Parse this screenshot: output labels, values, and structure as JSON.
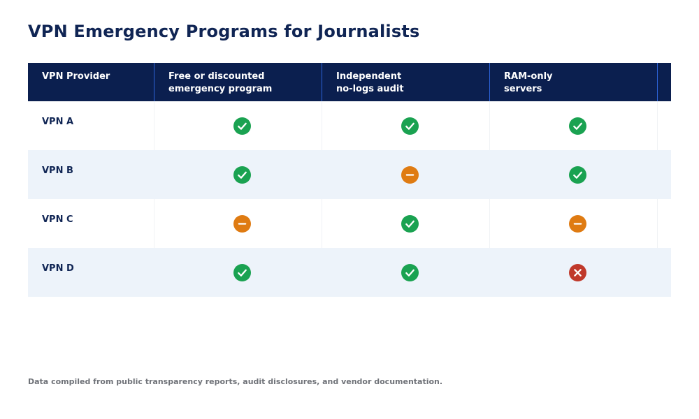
{
  "title": "VPN Emergency Programs for Journalists",
  "footnote": "Data compiled from public transparency reports, audit disclosures, and vendor documentation.",
  "colors": {
    "header_bg": "#0b1f4f",
    "title": "#102554",
    "alt_row": "#edf3fa",
    "yes": "#1aa251",
    "partial": "#df7b12",
    "no": "#c0392b"
  },
  "chart_data": {
    "type": "table",
    "columns": [
      "VPN Provider",
      "Free or discounted\nemergency program",
      "Independent\nno-logs audit",
      "RAM-only\nservers"
    ],
    "rows": [
      {
        "provider": "VPN A",
        "values": [
          "yes",
          "yes",
          "yes"
        ]
      },
      {
        "provider": "VPN B",
        "values": [
          "yes",
          "partial",
          "yes"
        ]
      },
      {
        "provider": "VPN C",
        "values": [
          "partial",
          "yes",
          "partial"
        ]
      },
      {
        "provider": "VPN D",
        "values": [
          "yes",
          "yes",
          "no"
        ]
      }
    ]
  }
}
